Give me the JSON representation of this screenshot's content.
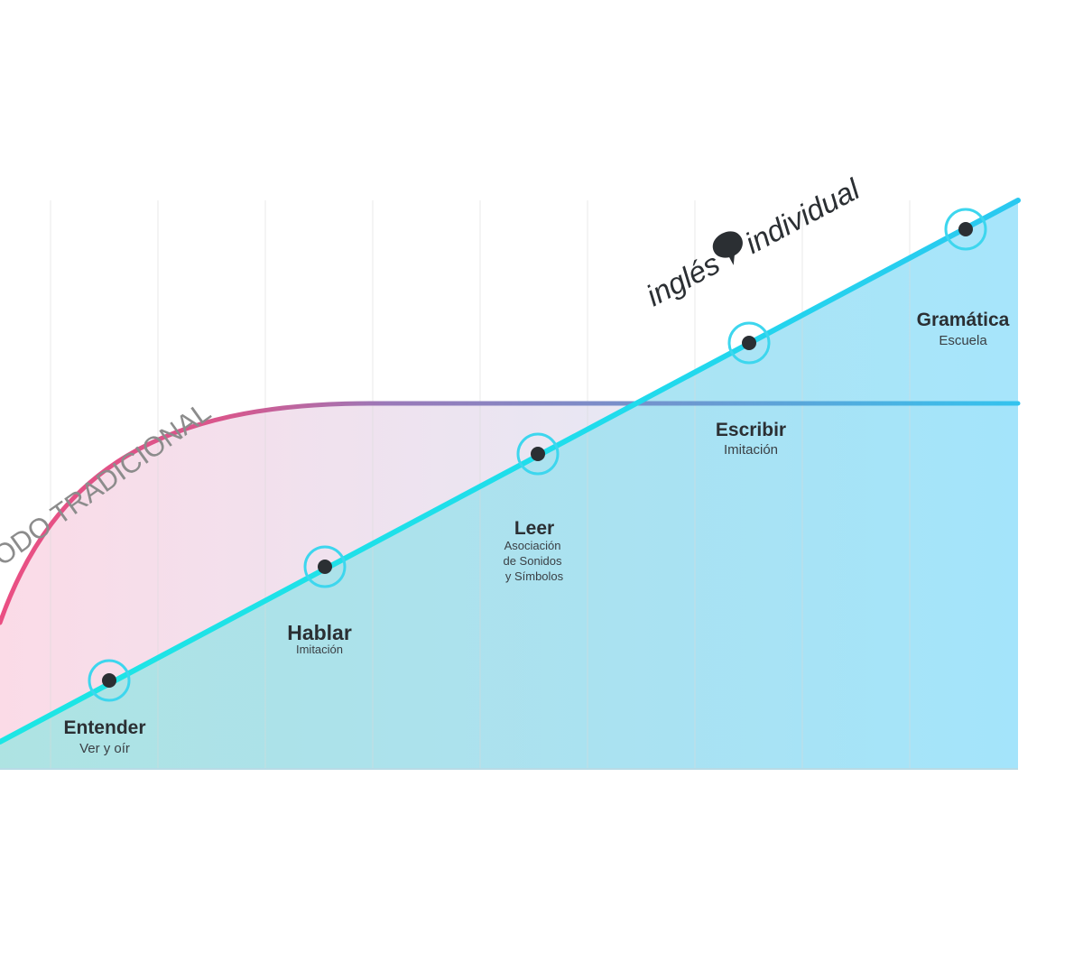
{
  "labels": {
    "traditional": "ODO TRADICIONAL",
    "brand_left": "inglés",
    "brand_right": "individual"
  },
  "steps": [
    {
      "title": "Entender",
      "subtitle": [
        "Ver y oír"
      ]
    },
    {
      "title": "Hablar",
      "subtitle": [
        "Imitación"
      ]
    },
    {
      "title": "Leer",
      "subtitle": [
        "Asociación",
        "de Sonidos",
        "y Símbolos"
      ]
    },
    {
      "title": "Escribir",
      "subtitle": [
        "Imitación"
      ]
    },
    {
      "title": "Gramática",
      "subtitle": [
        "Escuela"
      ]
    }
  ],
  "colors": {
    "traditional_start": "#ea4f83",
    "traditional_mid": "#9a79b8",
    "traditional_end": "#39bfe8",
    "method_line": "#1ee3ea",
    "method_line_end": "#2ac8f0",
    "fill_pink": "#fbdbe7",
    "fill_blue": "#9fe2fa",
    "marker_ring": "#3dd6ee",
    "marker_dot": "#2b2f33"
  }
}
